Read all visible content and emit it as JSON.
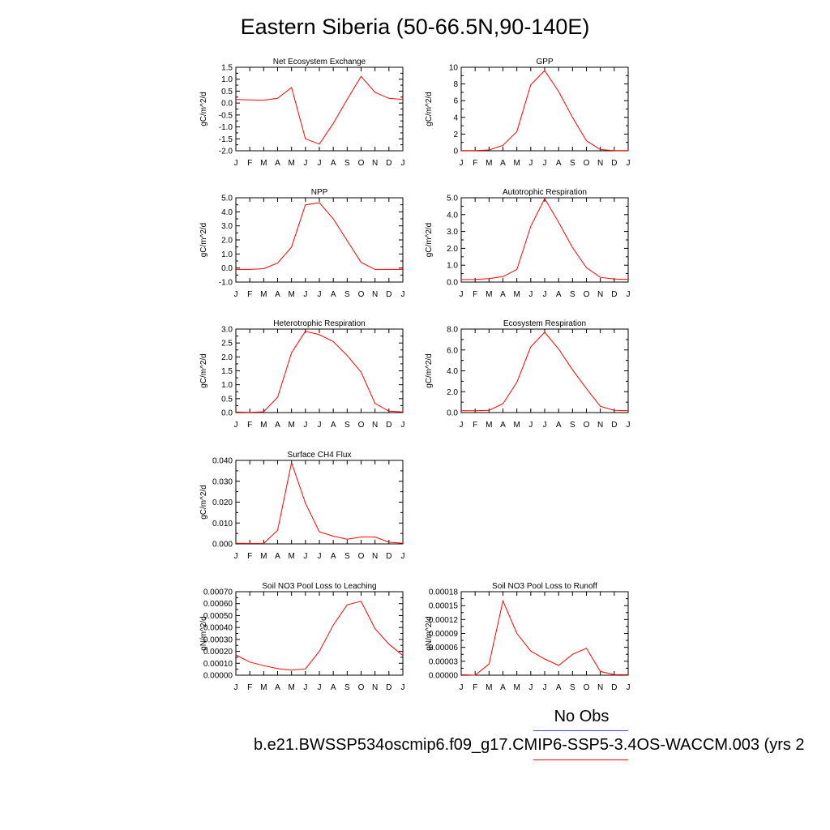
{
  "page": {
    "title": "Eastern Siberia (50-66.5N,90-140E)",
    "legend": {
      "obs_label": "No Obs",
      "obs_color": "#4444ff",
      "case_label": "b.e21.BWSSP534oscmip6.f09_g17.CMIP6-SSP5-3.4OS-WACCM.003 (yrs 2",
      "case_color": "#ff0000"
    }
  },
  "chart_data": [
    {
      "type": "line",
      "title": "Net Ecosystem Exchange",
      "ylabel": "gC/m^2/d",
      "ylim": [
        -2.0,
        1.5
      ],
      "yticks": [
        -2.0,
        -1.5,
        -1.0,
        -0.5,
        0.0,
        0.5,
        1.0,
        1.5
      ],
      "ytick_labels": [
        "-2.0",
        "-1.5",
        "-1.0",
        "-0.5",
        "0.0",
        "0.5",
        "1.0",
        "1.5"
      ],
      "x_tick_labels": [
        "J",
        "F",
        "M",
        "A",
        "M",
        "J",
        "J",
        "A",
        "S",
        "O",
        "N",
        "D",
        "J"
      ],
      "values": [
        0.15,
        0.13,
        0.12,
        0.2,
        0.65,
        -1.5,
        -1.72,
        -0.85,
        0.15,
        1.12,
        0.45,
        0.2,
        0.15
      ],
      "line_color": "#ff0000"
    },
    {
      "type": "line",
      "title": "GPP",
      "ylabel": "gC/m^2/d",
      "ylim": [
        0,
        10
      ],
      "yticks": [
        0,
        2,
        4,
        6,
        8,
        10
      ],
      "ytick_labels": [
        "0",
        "2",
        "4",
        "6",
        "8",
        "10"
      ],
      "x_tick_labels": [
        "J",
        "F",
        "M",
        "A",
        "M",
        "J",
        "J",
        "A",
        "S",
        "O",
        "N",
        "D",
        "J"
      ],
      "values": [
        0.02,
        0.02,
        0.1,
        0.65,
        2.3,
        7.9,
        9.6,
        7.1,
        4.0,
        1.2,
        0.15,
        0.02,
        0.02
      ],
      "line_color": "#ff0000"
    },
    {
      "type": "line",
      "title": "NPP",
      "ylabel": "gC/m^2/d",
      "ylim": [
        -1.0,
        5.0
      ],
      "yticks": [
        -1.0,
        0.0,
        1.0,
        2.0,
        3.0,
        4.0,
        5.0
      ],
      "ytick_labels": [
        "-1.0",
        "0.0",
        "1.0",
        "2.0",
        "3.0",
        "4.0",
        "5.0"
      ],
      "x_tick_labels": [
        "J",
        "F",
        "M",
        "A",
        "M",
        "J",
        "J",
        "A",
        "S",
        "O",
        "N",
        "D",
        "J"
      ],
      "values": [
        -0.1,
        -0.1,
        -0.05,
        0.35,
        1.5,
        4.5,
        4.65,
        3.5,
        1.95,
        0.4,
        -0.1,
        -0.1,
        -0.1
      ],
      "line_color": "#ff0000"
    },
    {
      "type": "line",
      "title": "Autotrophic Respiration",
      "ylabel": "gC/m^2/d",
      "ylim": [
        0.0,
        5.0
      ],
      "yticks": [
        0.0,
        1.0,
        2.0,
        3.0,
        4.0,
        5.0
      ],
      "ytick_labels": [
        "0.0",
        "1.0",
        "2.0",
        "3.0",
        "4.0",
        "5.0"
      ],
      "x_tick_labels": [
        "J",
        "F",
        "M",
        "A",
        "M",
        "J",
        "J",
        "A",
        "S",
        "O",
        "N",
        "D",
        "J"
      ],
      "values": [
        0.15,
        0.16,
        0.2,
        0.32,
        0.75,
        3.3,
        4.95,
        3.55,
        2.05,
        0.85,
        0.28,
        0.18,
        0.16
      ],
      "line_color": "#ff0000"
    },
    {
      "type": "line",
      "title": "Heterotrophic Respiration",
      "ylabel": "gC/m^2/d",
      "ylim": [
        0.0,
        3.0
      ],
      "yticks": [
        0.0,
        0.5,
        1.0,
        1.5,
        2.0,
        2.5,
        3.0
      ],
      "ytick_labels": [
        "0.0",
        "0.5",
        "1.0",
        "1.5",
        "2.0",
        "2.5",
        "3.0"
      ],
      "x_tick_labels": [
        "J",
        "F",
        "M",
        "A",
        "M",
        "J",
        "J",
        "A",
        "S",
        "O",
        "N",
        "D",
        "J"
      ],
      "values": [
        0.02,
        0.01,
        0.03,
        0.55,
        2.15,
        2.92,
        2.8,
        2.55,
        2.05,
        1.45,
        0.33,
        0.05,
        0.02
      ],
      "line_color": "#ff0000"
    },
    {
      "type": "line",
      "title": "Ecosystem Respiration",
      "ylabel": "gC/m^2/d",
      "ylim": [
        0.0,
        8.0
      ],
      "yticks": [
        0.0,
        2.0,
        4.0,
        6.0,
        8.0
      ],
      "ytick_labels": [
        "0.0",
        "2.0",
        "4.0",
        "6.0",
        "8.0"
      ],
      "x_tick_labels": [
        "J",
        "F",
        "M",
        "A",
        "M",
        "J",
        "J",
        "A",
        "S",
        "O",
        "N",
        "D",
        "J"
      ],
      "values": [
        0.18,
        0.18,
        0.22,
        0.85,
        2.9,
        6.3,
        7.7,
        6.1,
        4.1,
        2.3,
        0.6,
        0.22,
        0.18
      ],
      "line_color": "#ff0000"
    },
    {
      "type": "line",
      "title": "Surface CH4 Flux",
      "ylabel": "gC/m^2/d",
      "ylim": [
        0.0,
        0.04
      ],
      "yticks": [
        0.0,
        0.01,
        0.02,
        0.03,
        0.04
      ],
      "ytick_labels": [
        "0.000",
        "0.010",
        "0.020",
        "0.030",
        "0.040"
      ],
      "x_tick_labels": [
        "J",
        "F",
        "M",
        "A",
        "M",
        "J",
        "J",
        "A",
        "S",
        "O",
        "N",
        "D",
        "J"
      ],
      "values": [
        0.0003,
        0.0002,
        0.0002,
        0.0065,
        0.039,
        0.0195,
        0.0058,
        0.0037,
        0.0022,
        0.0033,
        0.0033,
        0.0008,
        0.0003
      ],
      "line_color": "#ff0000"
    },
    {
      "type": "line",
      "title": "Soil NO3 Pool Loss to Leaching",
      "ylabel": "gN/m^2/d",
      "ylim": [
        0.0,
        0.0007
      ],
      "yticks": [
        0.0,
        0.0001,
        0.0002,
        0.0003,
        0.0004,
        0.0005,
        0.0006,
        0.0007
      ],
      "ytick_labels": [
        "0.00000",
        "0.00010",
        "0.00020",
        "0.00030",
        "0.00040",
        "0.00050",
        "0.00060",
        "0.00070"
      ],
      "x_tick_labels": [
        "J",
        "F",
        "M",
        "A",
        "M",
        "J",
        "J",
        "A",
        "S",
        "O",
        "N",
        "D",
        "J"
      ],
      "values": [
        0.00017,
        0.00011,
        8e-05,
        5.5e-05,
        4.2e-05,
        5.3e-05,
        0.0002,
        0.00042,
        0.00059,
        0.00062,
        0.00039,
        0.00026,
        0.000165
      ],
      "line_color": "#ff0000"
    },
    {
      "type": "line",
      "title": "Soil NO3 Pool Loss to Runoff",
      "ylabel": "gN/m^2/d",
      "ylim": [
        0.0,
        0.00018
      ],
      "yticks": [
        0.0,
        3e-05,
        6e-05,
        9e-05,
        0.00012,
        0.00015,
        0.00018
      ],
      "ytick_labels": [
        "0.00000",
        "0.00003",
        "0.00006",
        "0.00009",
        "0.00012",
        "0.00015",
        "0.00018"
      ],
      "x_tick_labels": [
        "J",
        "F",
        "M",
        "A",
        "M",
        "J",
        "J",
        "A",
        "S",
        "O",
        "N",
        "D",
        "J"
      ],
      "values": [
        1e-06,
        0.0,
        2.4e-05,
        0.00016,
        9e-05,
        5.2e-05,
        3.5e-05,
        2.1e-05,
        4.5e-05,
        5.8e-05,
        8e-06,
        1e-06,
        1e-06
      ],
      "line_color": "#ff0000"
    }
  ]
}
